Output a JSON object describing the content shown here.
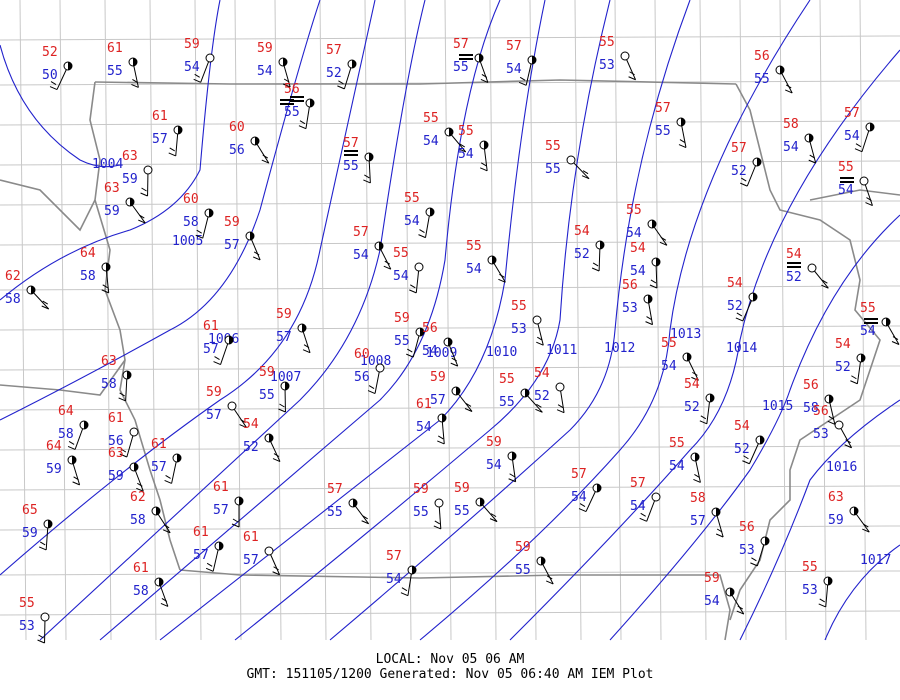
{
  "footer": {
    "local": "LOCAL: Nov 05 06 AM",
    "gmt": "GMT: 151105/1200 Generated: Nov 05 06:40 AM IEM Plot"
  },
  "colors": {
    "temperature": "#dd2222",
    "dewpoint": "#2222cc",
    "isobar": "#2222cc",
    "county_lines": "#c8c8c8",
    "state_lines": "#888888"
  },
  "isobar_labels": [
    "1004",
    "1005",
    "1006",
    "1007",
    "1008",
    "1009",
    "1010",
    "1011",
    "1012",
    "1013",
    "1014",
    "1015",
    "1016",
    "1017"
  ],
  "stations": [
    {
      "t": "52",
      "d": "50"
    },
    {
      "t": "61",
      "d": "55"
    },
    {
      "t": "59",
      "d": "54"
    },
    {
      "t": "59",
      "d": "54"
    },
    {
      "t": "57",
      "d": "52"
    },
    {
      "t": "57",
      "d": "55"
    },
    {
      "t": "57",
      "d": "54"
    },
    {
      "t": "55",
      "d": "53"
    },
    {
      "t": "56",
      "d": "55"
    },
    {
      "t": "56",
      "d": "55"
    },
    {
      "t": "61",
      "d": "57"
    },
    {
      "t": "60",
      "d": "56"
    },
    {
      "t": "63",
      "d": "59"
    },
    {
      "t": "63",
      "d": "59"
    },
    {
      "t": "57",
      "d": "55"
    },
    {
      "t": "55",
      "d": "54"
    },
    {
      "t": "55",
      "d": "54"
    },
    {
      "t": "55",
      "d": "55"
    },
    {
      "t": "57",
      "d": "55"
    },
    {
      "t": "57",
      "d": "52"
    },
    {
      "t": "58",
      "d": "54"
    },
    {
      "t": "57",
      "d": "54"
    },
    {
      "t": "55",
      "d": "54"
    },
    {
      "t": "60",
      "d": "58"
    },
    {
      "t": "59",
      "d": "57"
    },
    {
      "t": "55",
      "d": "54"
    },
    {
      "t": "57",
      "d": "54"
    },
    {
      "t": "55",
      "d": "54"
    },
    {
      "t": "55",
      "d": "54"
    },
    {
      "t": "54",
      "d": "52"
    },
    {
      "t": "55",
      "d": "54"
    },
    {
      "t": "54",
      "d": "54"
    },
    {
      "t": "54",
      "d": "52"
    },
    {
      "t": "64",
      "d": "58"
    },
    {
      "t": "62",
      "d": "58"
    },
    {
      "t": "56",
      "d": "53"
    },
    {
      "t": "54",
      "d": "52"
    },
    {
      "t": "55",
      "d": "53"
    },
    {
      "t": "61",
      "d": "57"
    },
    {
      "t": "59",
      "d": "57"
    },
    {
      "t": "59",
      "d": "55"
    },
    {
      "t": "56",
      "d": "54"
    },
    {
      "t": "60",
      "d": "56"
    },
    {
      "t": "55",
      "d": "54"
    },
    {
      "t": "54",
      "d": "52"
    },
    {
      "t": "55",
      "d": "54"
    },
    {
      "t": "63",
      "d": "58"
    },
    {
      "t": "59",
      "d": "57"
    },
    {
      "t": "59",
      "d": "55"
    },
    {
      "t": "59",
      "d": "57"
    },
    {
      "t": "61",
      "d": "54"
    },
    {
      "t": "55",
      "d": "55"
    },
    {
      "t": "54",
      "d": "52"
    },
    {
      "t": "54",
      "d": "52"
    },
    {
      "t": "56",
      "d": "58"
    },
    {
      "t": "64",
      "d": "58"
    },
    {
      "t": "64",
      "d": "59"
    },
    {
      "t": "61",
      "d": "56"
    },
    {
      "t": "63",
      "d": "59"
    },
    {
      "t": "61",
      "d": "57"
    },
    {
      "t": "54",
      "d": "52"
    },
    {
      "t": "54",
      "d": "52"
    },
    {
      "t": "56",
      "d": "53"
    },
    {
      "t": "65",
      "d": "59"
    },
    {
      "t": "62",
      "d": "58"
    },
    {
      "t": "61",
      "d": "57"
    },
    {
      "t": "57",
      "d": "55"
    },
    {
      "t": "59",
      "d": "55"
    },
    {
      "t": "59",
      "d": "55"
    },
    {
      "t": "59",
      "d": "54"
    },
    {
      "t": "57",
      "d": "54"
    },
    {
      "t": "55",
      "d": "54"
    },
    {
      "t": "57",
      "d": "54"
    },
    {
      "t": "58",
      "d": "57"
    },
    {
      "t": "56",
      "d": "53"
    },
    {
      "t": "61",
      "d": "58"
    },
    {
      "t": "61",
      "d": "57"
    },
    {
      "t": "61",
      "d": "57"
    },
    {
      "t": "57",
      "d": "54"
    },
    {
      "t": "59",
      "d": "55"
    },
    {
      "t": "55",
      "d": "53"
    },
    {
      "t": "59",
      "d": "54"
    },
    {
      "t": "55",
      "d": "53"
    },
    {
      "t": "63",
      "d": "59"
    },
    {
      "t": "65",
      "d": "59"
    }
  ]
}
